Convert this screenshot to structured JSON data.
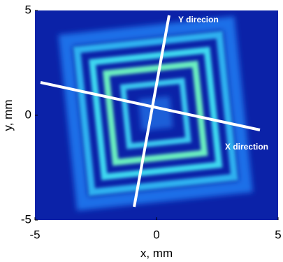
{
  "chart_data": {
    "type": "heatmap",
    "x_label": "x, mm",
    "y_label": "y, mm",
    "xlim": [
      -5,
      5
    ],
    "ylim": [
      -5,
      5
    ],
    "xticks": [
      -5,
      0,
      5
    ],
    "yticks": [
      -5,
      0,
      5
    ],
    "annotations": [
      "Y direcion",
      "X direction"
    ]
  }
}
